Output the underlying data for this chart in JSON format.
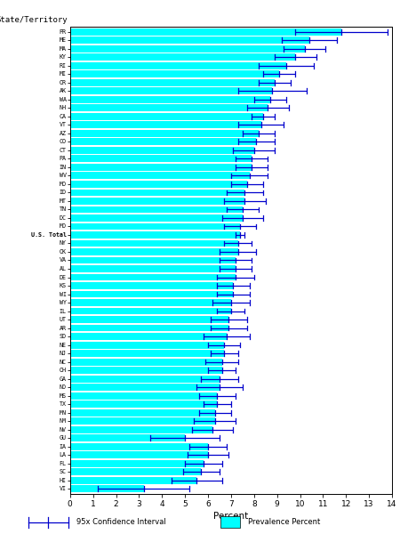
{
  "states": [
    "PR",
    "ME",
    "MA",
    "KY",
    "RI",
    "MI",
    "OR",
    "AK",
    "WA",
    "NH",
    "CA",
    "VT",
    "AZ",
    "CO",
    "CT",
    "PA",
    "IN",
    "WV",
    "MO",
    "ID",
    "MT",
    "TN",
    "DC",
    "MD",
    "U.S. Total",
    "NY",
    "OK",
    "VA",
    "AL",
    "DE",
    "KS",
    "WI",
    "WY",
    "IL",
    "UT",
    "AR",
    "SD",
    "NE",
    "NJ",
    "NC",
    "OH",
    "GA",
    "ND",
    "MS",
    "TX",
    "MN",
    "NM",
    "NV",
    "GU",
    "IA",
    "LA",
    "FL",
    "SC",
    "HI",
    "VI"
  ],
  "prevalence": [
    11.8,
    10.4,
    10.2,
    9.8,
    9.4,
    9.1,
    8.9,
    8.8,
    8.7,
    8.6,
    8.4,
    8.3,
    8.2,
    8.1,
    8.0,
    7.9,
    7.9,
    7.8,
    7.7,
    7.6,
    7.6,
    7.5,
    7.5,
    7.4,
    7.4,
    7.3,
    7.3,
    7.2,
    7.2,
    7.2,
    7.1,
    7.1,
    7.0,
    7.0,
    6.9,
    6.9,
    6.8,
    6.7,
    6.7,
    6.6,
    6.6,
    6.5,
    6.5,
    6.4,
    6.4,
    6.3,
    6.3,
    6.2,
    5.0,
    6.0,
    6.0,
    5.8,
    5.7,
    5.5,
    3.2
  ],
  "ci_lower": [
    9.8,
    9.2,
    9.3,
    8.9,
    8.2,
    8.4,
    8.2,
    7.3,
    8.0,
    7.7,
    7.9,
    7.3,
    7.5,
    7.3,
    7.1,
    7.2,
    7.2,
    7.0,
    7.0,
    6.8,
    6.7,
    6.8,
    6.6,
    6.7,
    7.2,
    6.7,
    6.5,
    6.5,
    6.5,
    6.4,
    6.4,
    6.4,
    6.2,
    6.4,
    6.1,
    6.1,
    5.8,
    6.0,
    6.1,
    5.9,
    6.0,
    5.7,
    5.5,
    5.6,
    5.8,
    5.6,
    5.4,
    5.3,
    3.5,
    5.2,
    5.1,
    5.0,
    4.9,
    4.4,
    1.2
  ],
  "ci_upper": [
    13.8,
    11.6,
    11.1,
    10.7,
    10.6,
    9.8,
    9.6,
    10.3,
    9.4,
    9.5,
    8.9,
    9.3,
    8.9,
    8.9,
    8.9,
    8.6,
    8.6,
    8.6,
    8.4,
    8.4,
    8.5,
    8.2,
    8.4,
    8.1,
    7.6,
    7.9,
    8.1,
    7.9,
    7.9,
    8.0,
    7.8,
    7.8,
    7.8,
    7.6,
    7.7,
    7.7,
    7.8,
    7.4,
    7.3,
    7.3,
    7.2,
    7.3,
    7.5,
    7.2,
    7.0,
    7.0,
    7.2,
    7.1,
    6.5,
    6.8,
    6.9,
    6.6,
    6.5,
    6.6,
    5.2
  ],
  "bar_color": "#00FFFF",
  "ci_color": "#0000CC",
  "xlabel": "Percent",
  "ylabel": "State/Territory",
  "xlim": [
    0,
    14
  ],
  "xticks": [
    0,
    1,
    2,
    3,
    4,
    5,
    6,
    7,
    8,
    9,
    10,
    11,
    12,
    13,
    14
  ],
  "legend_ci_label": "95x Confidence Interval",
  "legend_prev_label": "Prevalence Percent",
  "figsize": [
    4.5,
    6.0
  ],
  "dpi": 100
}
